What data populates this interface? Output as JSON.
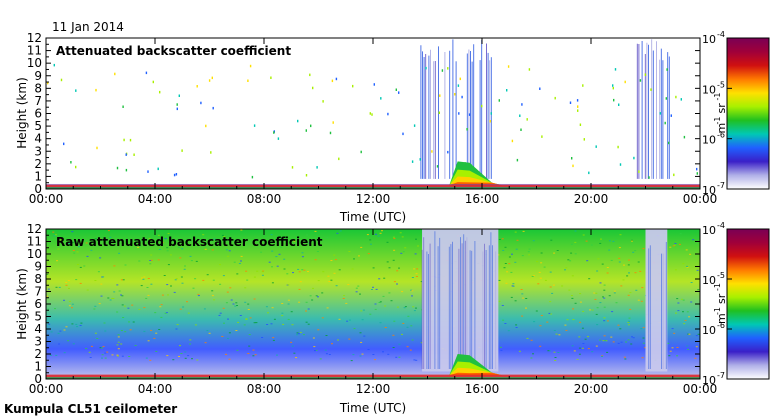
{
  "header": {
    "date": "11 Jan 2014"
  },
  "footer": {
    "site": "Kumpula CL51 ceilometer"
  },
  "colorbar": {
    "ticks": [
      "10",
      "10",
      "10",
      "10"
    ],
    "exponents": [
      "-4",
      "-5",
      "-6",
      "-7"
    ],
    "unit_m": "m",
    "unit_m_exp": "-1",
    "unit_sr": "sr",
    "unit_sr_exp": "-1",
    "stops": [
      "#7a0055",
      "#a0003a",
      "#d01010",
      "#ff7a00",
      "#ffe000",
      "#a8f000",
      "#20c020",
      "#00c8b4",
      "#2060ff",
      "#3a20c8",
      "#b0b0e8",
      "#ffffff"
    ]
  },
  "chart_data": [
    {
      "type": "heatmap",
      "title": "Attenuated backscatter coefficient",
      "xlabel": "Time (UTC)",
      "ylabel": "Height (km)",
      "xticks": [
        "00:00",
        "04:00",
        "08:00",
        "12:00",
        "16:00",
        "20:00",
        "00:00"
      ],
      "xlim_hours": [
        0,
        24
      ],
      "yticks": [
        "0",
        "1",
        "2",
        "3",
        "4",
        "5",
        "6",
        "7",
        "8",
        "9",
        "10",
        "11",
        "12"
      ],
      "ylim_km": [
        0,
        12
      ],
      "colorscale": {
        "min": 1e-07,
        "max": 0.0001,
        "scale": "log",
        "unit": "m-1 sr-1"
      },
      "features": [
        {
          "name": "cloud-column",
          "t_start": 13.7,
          "t_end": 16.6,
          "h_max": 12
        },
        {
          "name": "cloud-column",
          "t_start": 21.7,
          "t_end": 22.9,
          "h_max": 12
        },
        {
          "name": "convective-echo",
          "t_start": 14.8,
          "t_end": 16.0,
          "h_max": 2.2
        },
        {
          "name": "low-aerosol-layer",
          "t_start": 0,
          "t_end": 24,
          "h_max": 0.4
        }
      ]
    },
    {
      "type": "heatmap",
      "title": "Raw attenuated backscatter coefficient",
      "xlabel": "Time (UTC)",
      "ylabel": "Height (km)",
      "xticks": [
        "00:00",
        "04:00",
        "08:00",
        "12:00",
        "16:00",
        "20:00",
        "00:00"
      ],
      "xlim_hours": [
        0,
        24
      ],
      "yticks": [
        "0",
        "1",
        "2",
        "3",
        "4",
        "5",
        "6",
        "7",
        "8",
        "9",
        "10",
        "11",
        "12"
      ],
      "ylim_km": [
        0,
        12
      ],
      "colorscale": {
        "min": 1e-07,
        "max": 0.0001,
        "scale": "log",
        "unit": "m-1 sr-1"
      },
      "features": [
        {
          "name": "noise-field",
          "t_start": 0,
          "t_end": 24,
          "h_min": 2,
          "h_max": 12
        },
        {
          "name": "cloud-column",
          "t_start": 13.8,
          "t_end": 16.6,
          "h_max": 12
        },
        {
          "name": "cloud-column",
          "t_start": 22.0,
          "t_end": 22.8,
          "h_max": 12
        },
        {
          "name": "convective-echo",
          "t_start": 14.8,
          "t_end": 16.0,
          "h_max": 2.0
        }
      ]
    }
  ]
}
